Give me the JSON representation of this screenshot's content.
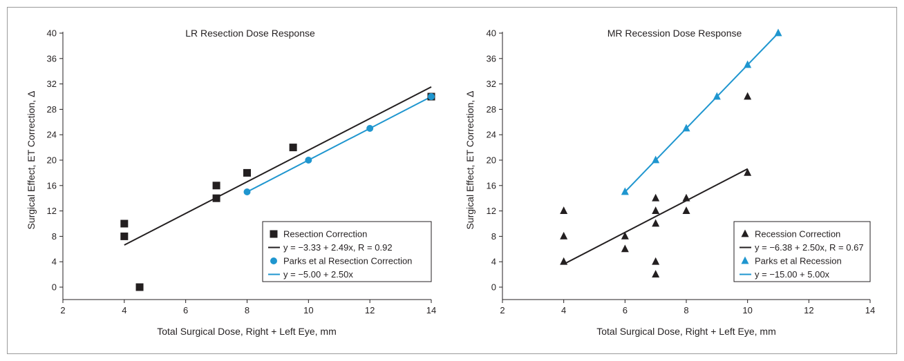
{
  "colors": {
    "black": "#231f20",
    "blue": "#1f96cf",
    "frame": "#9a9a9a"
  },
  "chart_data": [
    {
      "type": "scatter",
      "title": "LR Resection Dose Response",
      "xlabel": "Total Surgical Dose, Right + Left Eye, mm",
      "ylabel": "Surgical Effect, ET Correction, Δ",
      "xlim": [
        2,
        14
      ],
      "ylim": [
        0,
        40
      ],
      "xticks": [
        "2",
        "4",
        "6",
        "8",
        "10",
        "12",
        "14"
      ],
      "yticks": [
        "0",
        "4",
        "8",
        "12",
        "16",
        "20",
        "24",
        "28",
        "32",
        "36",
        "40"
      ],
      "legend_position": "bottom-right",
      "series": [
        {
          "name": "Resection Correction",
          "kind": "points",
          "marker": "square",
          "color": "#231f20",
          "x": [
            4,
            4,
            4.5,
            7,
            7,
            8,
            9.5,
            14
          ],
          "y": [
            10,
            8,
            0,
            16,
            14,
            18,
            22,
            30
          ]
        },
        {
          "name": "y = −3.33 + 2.49x, R = 0.92",
          "kind": "line",
          "color": "#231f20",
          "x": [
            4,
            14
          ],
          "y": [
            6.63,
            31.53
          ]
        },
        {
          "name": "Parks et al Resection Correction",
          "kind": "points",
          "marker": "circle",
          "color": "#1f96cf",
          "x": [
            8,
            10,
            12,
            14
          ],
          "y": [
            15,
            20,
            25,
            30
          ]
        },
        {
          "name": "y = −5.00 + 2.50x",
          "kind": "line",
          "color": "#1f96cf",
          "x": [
            8,
            14
          ],
          "y": [
            15,
            30
          ]
        }
      ]
    },
    {
      "type": "scatter",
      "title": "MR Recession Dose Response",
      "xlabel": "Total Surgical Dose, Right + Left Eye, mm",
      "ylabel": "Surgical Effect, ET Correction, Δ",
      "xlim": [
        2,
        14
      ],
      "ylim": [
        0,
        40
      ],
      "xticks": [
        "2",
        "4",
        "6",
        "8",
        "10",
        "12",
        "14"
      ],
      "yticks": [
        "0",
        "4",
        "8",
        "12",
        "16",
        "20",
        "24",
        "28",
        "32",
        "36",
        "40"
      ],
      "legend_position": "bottom-right",
      "series": [
        {
          "name": "Recession Correction",
          "kind": "points",
          "marker": "triangle",
          "color": "#231f20",
          "x": [
            4,
            4,
            4,
            6,
            6,
            7,
            7,
            7,
            7,
            7,
            8,
            8,
            10,
            10
          ],
          "y": [
            12,
            8,
            4,
            8,
            6,
            14,
            12,
            10,
            4,
            2,
            14,
            12,
            30,
            18
          ]
        },
        {
          "name": "y = −6.38 + 2.50x, R = 0.67",
          "kind": "line",
          "color": "#231f20",
          "x": [
            4,
            10
          ],
          "y": [
            3.62,
            18.62
          ]
        },
        {
          "name": "Parks et al Recession",
          "kind": "points",
          "marker": "triangle",
          "color": "#1f96cf",
          "x": [
            6,
            7,
            8,
            9,
            10,
            11
          ],
          "y": [
            15,
            20,
            25,
            30,
            35,
            40
          ]
        },
        {
          "name": "y = −15.00 + 5.00x",
          "kind": "line",
          "color": "#1f96cf",
          "x": [
            6,
            11
          ],
          "y": [
            15,
            40
          ]
        }
      ]
    }
  ]
}
